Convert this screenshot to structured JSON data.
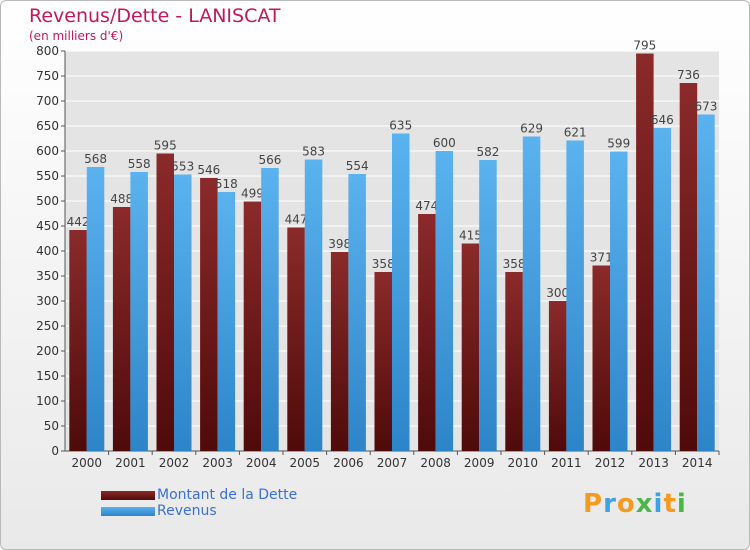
{
  "title": "Revenus/Dette - LANISCAT",
  "subtitle": "(en milliers d'€)",
  "logo": {
    "text": "Proxiti",
    "colors": [
      "#f59a1f",
      "#3fa1e0",
      "#f59a1f",
      "#4bb749",
      "#3fa1e0",
      "#f59a1f",
      "#4bb749"
    ]
  },
  "chart_data": {
    "type": "bar",
    "title": "Revenus/Dette - LANISCAT",
    "subtitle": "(en milliers d'€)",
    "categories": [
      "2000",
      "2001",
      "2002",
      "2003",
      "2004",
      "2005",
      "2006",
      "2007",
      "2008",
      "2009",
      "2010",
      "2011",
      "2012",
      "2013",
      "2014"
    ],
    "series": [
      {
        "name": "Montant de la Dette",
        "color": "#7a1c1c",
        "values": [
          442,
          488,
          595,
          546,
          499,
          447,
          398,
          358,
          474,
          415,
          358,
          300,
          371,
          795,
          736
        ]
      },
      {
        "name": "Revenus",
        "color": "#3d9fe4",
        "values": [
          568,
          558,
          553,
          518,
          566,
          583,
          554,
          635,
          600,
          582,
          629,
          621,
          599,
          646,
          673
        ]
      }
    ],
    "ylim": [
      0,
      800
    ],
    "yticks": [
      0,
      50,
      100,
      150,
      200,
      250,
      300,
      350,
      400,
      450,
      500,
      550,
      600,
      650,
      700,
      750,
      800
    ],
    "grid": true,
    "legend_position": "bottom-left"
  }
}
